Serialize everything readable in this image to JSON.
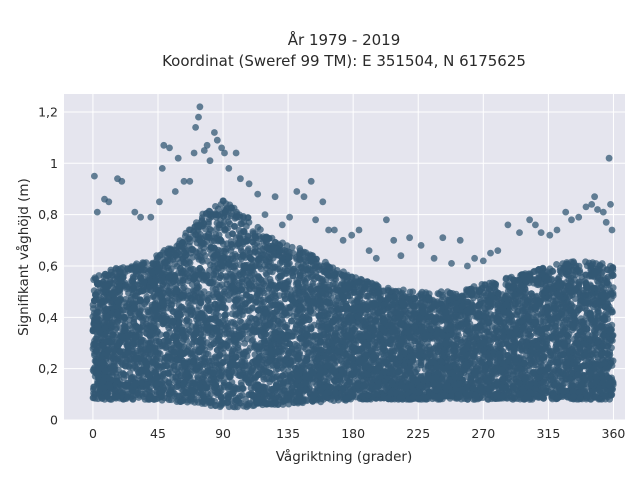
{
  "chart_data": {
    "type": "scatter",
    "title_line1": "År 1979 - 2019",
    "title_line2": "Koordinat (Sweref 99 TM): E 351504, N 6175625",
    "xlabel": "Vågriktning (grader)",
    "ylabel": "Signifikant våghöjd (m)",
    "xlim": [
      -20,
      368
    ],
    "ylim": [
      0,
      1.27
    ],
    "x_ticks": [
      0,
      45,
      90,
      135,
      180,
      225,
      270,
      315,
      360
    ],
    "x_tick_labels": [
      "0",
      "45",
      "90",
      "135",
      "180",
      "225",
      "270",
      "315",
      "360"
    ],
    "y_ticks": [
      0,
      0.2,
      0.4,
      0.6,
      0.8,
      1.0,
      1.2
    ],
    "y_tick_labels": [
      "0",
      "0,2",
      "0,4",
      "0,6",
      "0,8",
      "1",
      "1,2"
    ],
    "grid": true,
    "legend": "none",
    "colors": {
      "background": "#e5e5ee",
      "grid": "#ffffff",
      "marker": "#335874"
    },
    "envelope": {
      "direction": [
        0,
        20,
        40,
        60,
        75,
        90,
        105,
        120,
        135,
        150,
        165,
        180,
        200,
        225,
        250,
        270,
        290,
        315,
        330,
        345,
        360
      ],
      "max_dense_height": [
        0.56,
        0.6,
        0.63,
        0.7,
        0.8,
        0.86,
        0.8,
        0.72,
        0.68,
        0.66,
        0.6,
        0.56,
        0.52,
        0.5,
        0.5,
        0.53,
        0.56,
        0.6,
        0.62,
        0.62,
        0.6
      ],
      "min_height": [
        0.08,
        0.08,
        0.08,
        0.07,
        0.06,
        0.05,
        0.05,
        0.06,
        0.06,
        0.07,
        0.07,
        0.08,
        0.08,
        0.08,
        0.08,
        0.08,
        0.08,
        0.08,
        0.08,
        0.08,
        0.08
      ]
    },
    "outliers": [
      {
        "x": 1,
        "y": 0.95
      },
      {
        "x": 3,
        "y": 0.81
      },
      {
        "x": 8,
        "y": 0.86
      },
      {
        "x": 11,
        "y": 0.85
      },
      {
        "x": 17,
        "y": 0.94
      },
      {
        "x": 20,
        "y": 0.93
      },
      {
        "x": 29,
        "y": 0.81
      },
      {
        "x": 33,
        "y": 0.79
      },
      {
        "x": 40,
        "y": 0.79
      },
      {
        "x": 46,
        "y": 0.85
      },
      {
        "x": 48,
        "y": 0.98
      },
      {
        "x": 49,
        "y": 1.07
      },
      {
        "x": 53,
        "y": 1.06
      },
      {
        "x": 57,
        "y": 0.89
      },
      {
        "x": 59,
        "y": 1.02
      },
      {
        "x": 63,
        "y": 0.93
      },
      {
        "x": 67,
        "y": 0.93
      },
      {
        "x": 70,
        "y": 1.04
      },
      {
        "x": 71,
        "y": 1.14
      },
      {
        "x": 73,
        "y": 1.18
      },
      {
        "x": 74,
        "y": 1.22
      },
      {
        "x": 77,
        "y": 1.05
      },
      {
        "x": 79,
        "y": 1.07
      },
      {
        "x": 81,
        "y": 1.01
      },
      {
        "x": 84,
        "y": 1.12
      },
      {
        "x": 86,
        "y": 1.09
      },
      {
        "x": 89,
        "y": 1.06
      },
      {
        "x": 91,
        "y": 1.04
      },
      {
        "x": 94,
        "y": 0.98
      },
      {
        "x": 99,
        "y": 1.04
      },
      {
        "x": 102,
        "y": 0.94
      },
      {
        "x": 108,
        "y": 0.92
      },
      {
        "x": 114,
        "y": 0.88
      },
      {
        "x": 119,
        "y": 0.8
      },
      {
        "x": 126,
        "y": 0.87
      },
      {
        "x": 131,
        "y": 0.76
      },
      {
        "x": 136,
        "y": 0.79
      },
      {
        "x": 141,
        "y": 0.89
      },
      {
        "x": 146,
        "y": 0.87
      },
      {
        "x": 151,
        "y": 0.93
      },
      {
        "x": 154,
        "y": 0.78
      },
      {
        "x": 159,
        "y": 0.85
      },
      {
        "x": 163,
        "y": 0.74
      },
      {
        "x": 167,
        "y": 0.74
      },
      {
        "x": 173,
        "y": 0.7
      },
      {
        "x": 179,
        "y": 0.72
      },
      {
        "x": 184,
        "y": 0.74
      },
      {
        "x": 191,
        "y": 0.66
      },
      {
        "x": 196,
        "y": 0.63
      },
      {
        "x": 203,
        "y": 0.78
      },
      {
        "x": 208,
        "y": 0.7
      },
      {
        "x": 213,
        "y": 0.64
      },
      {
        "x": 219,
        "y": 0.71
      },
      {
        "x": 227,
        "y": 0.68
      },
      {
        "x": 236,
        "y": 0.63
      },
      {
        "x": 242,
        "y": 0.71
      },
      {
        "x": 248,
        "y": 0.61
      },
      {
        "x": 254,
        "y": 0.7
      },
      {
        "x": 259,
        "y": 0.6
      },
      {
        "x": 264,
        "y": 0.63
      },
      {
        "x": 270,
        "y": 0.62
      },
      {
        "x": 275,
        "y": 0.65
      },
      {
        "x": 280,
        "y": 0.66
      },
      {
        "x": 287,
        "y": 0.76
      },
      {
        "x": 295,
        "y": 0.73
      },
      {
        "x": 302,
        "y": 0.78
      },
      {
        "x": 306,
        "y": 0.76
      },
      {
        "x": 310,
        "y": 0.73
      },
      {
        "x": 316,
        "y": 0.72
      },
      {
        "x": 321,
        "y": 0.74
      },
      {
        "x": 327,
        "y": 0.81
      },
      {
        "x": 331,
        "y": 0.78
      },
      {
        "x": 336,
        "y": 0.79
      },
      {
        "x": 341,
        "y": 0.83
      },
      {
        "x": 345,
        "y": 0.84
      },
      {
        "x": 347,
        "y": 0.87
      },
      {
        "x": 349,
        "y": 0.82
      },
      {
        "x": 353,
        "y": 0.81
      },
      {
        "x": 355,
        "y": 0.77
      },
      {
        "x": 357,
        "y": 1.02
      },
      {
        "x": 358,
        "y": 0.84
      },
      {
        "x": 359,
        "y": 0.74
      }
    ]
  }
}
